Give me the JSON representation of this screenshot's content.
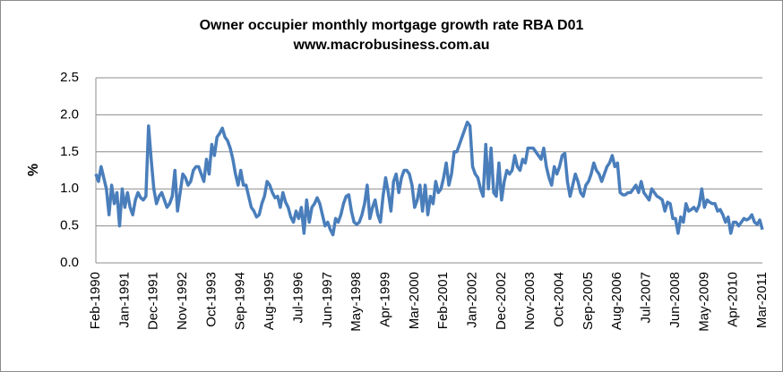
{
  "chart_data": {
    "type": "line",
    "title": "Owner occupier monthly mortgage growth rate RBA D01",
    "subtitle": "www.macrobusiness.com.au",
    "y_label": "%",
    "categories": [
      "Feb-1990",
      null,
      null,
      null,
      null,
      null,
      null,
      null,
      null,
      null,
      null,
      "Jan-1991",
      null,
      null,
      null,
      null,
      null,
      null,
      null,
      null,
      null,
      null,
      "Dec-1991",
      null,
      null,
      null,
      null,
      null,
      null,
      null,
      null,
      null,
      null,
      "Nov-1992",
      null,
      null,
      null,
      null,
      null,
      null,
      null,
      null,
      null,
      null,
      "Oct-1993",
      null,
      null,
      null,
      null,
      null,
      null,
      null,
      null,
      null,
      null,
      "Sep-1994",
      null,
      null,
      null,
      null,
      null,
      null,
      null,
      null,
      null,
      null,
      "Aug-1995",
      null,
      null,
      null,
      null,
      null,
      null,
      null,
      null,
      null,
      null,
      "Jul-1996",
      null,
      null,
      null,
      null,
      null,
      null,
      null,
      null,
      null,
      null,
      "Jun-1997",
      null,
      null,
      null,
      null,
      null,
      null,
      null,
      null,
      null,
      null,
      "May-1998",
      null,
      null,
      null,
      null,
      null,
      null,
      null,
      null,
      null,
      null,
      "Apr-1999",
      null,
      null,
      null,
      null,
      null,
      null,
      null,
      null,
      null,
      null,
      "Mar-2000",
      null,
      null,
      null,
      null,
      null,
      null,
      null,
      null,
      null,
      null,
      "Feb-2001",
      null,
      null,
      null,
      null,
      null,
      null,
      null,
      null,
      null,
      null,
      "Jan-2002",
      null,
      null,
      null,
      null,
      null,
      null,
      null,
      null,
      null,
      null,
      "Dec-2002",
      null,
      null,
      null,
      null,
      null,
      null,
      null,
      null,
      null,
      null,
      "Nov-2003",
      null,
      null,
      null,
      null,
      null,
      null,
      null,
      null,
      null,
      null,
      "Oct-2004",
      null,
      null,
      null,
      null,
      null,
      null,
      null,
      null,
      null,
      null,
      "Sep-2005",
      null,
      null,
      null,
      null,
      null,
      null,
      null,
      null,
      null,
      null,
      "Aug-2006",
      null,
      null,
      null,
      null,
      null,
      null,
      null,
      null,
      null,
      null,
      "Jul-2007",
      null,
      null,
      null,
      null,
      null,
      null,
      null,
      null,
      null,
      null,
      "Jun-2008",
      null,
      null,
      null,
      null,
      null,
      null,
      null,
      null,
      null,
      null,
      "May-2009",
      null,
      null,
      null,
      null,
      null,
      null,
      null,
      null,
      null,
      null,
      "Apr-2010",
      null,
      null,
      null,
      null,
      null,
      null,
      null,
      null,
      null,
      null,
      "Mar-2011"
    ],
    "series": [
      {
        "name": "Owner occupier",
        "color": "#4a7ebb",
        "values": [
          1.2,
          1.1,
          1.3,
          1.15,
          1.0,
          0.65,
          1.05,
          0.8,
          0.95,
          0.5,
          1.0,
          0.75,
          0.95,
          0.75,
          0.65,
          0.85,
          0.95,
          0.88,
          0.85,
          0.9,
          1.85,
          1.4,
          1.0,
          0.8,
          0.9,
          0.95,
          0.85,
          0.75,
          0.8,
          0.9,
          1.25,
          0.7,
          0.95,
          1.2,
          1.15,
          1.05,
          1.1,
          1.25,
          1.3,
          1.3,
          1.2,
          1.1,
          1.4,
          1.2,
          1.6,
          1.45,
          1.7,
          1.75,
          1.82,
          1.7,
          1.65,
          1.55,
          1.4,
          1.2,
          1.05,
          1.25,
          1.05,
          1.05,
          0.9,
          0.75,
          0.7,
          0.62,
          0.65,
          0.8,
          0.9,
          1.1,
          1.05,
          0.95,
          0.88,
          0.9,
          0.75,
          0.95,
          0.82,
          0.75,
          0.62,
          0.55,
          0.7,
          0.6,
          0.75,
          0.4,
          0.85,
          0.55,
          0.75,
          0.8,
          0.88,
          0.8,
          0.65,
          0.5,
          0.55,
          0.45,
          0.38,
          0.6,
          0.55,
          0.65,
          0.8,
          0.9,
          0.92,
          0.7,
          0.55,
          0.52,
          0.55,
          0.65,
          0.8,
          1.05,
          0.6,
          0.75,
          0.85,
          0.65,
          0.55,
          0.9,
          1.15,
          0.95,
          0.7,
          1.1,
          1.2,
          0.95,
          1.15,
          1.25,
          1.25,
          1.2,
          1.05,
          0.75,
          0.85,
          1.05,
          0.7,
          1.05,
          0.65,
          0.9,
          0.8,
          1.1,
          0.95,
          1.0,
          1.15,
          1.35,
          1.05,
          1.2,
          1.5,
          1.5,
          1.6,
          1.7,
          1.8,
          1.9,
          1.85,
          1.3,
          1.2,
          1.15,
          1.0,
          0.9,
          1.6,
          1.0,
          1.55,
          0.95,
          0.9,
          1.35,
          0.85,
          1.1,
          1.25,
          1.2,
          1.25,
          1.45,
          1.3,
          1.25,
          1.4,
          1.35,
          1.55,
          1.55,
          1.55,
          1.5,
          1.45,
          1.4,
          1.55,
          1.3,
          1.15,
          1.05,
          1.3,
          1.2,
          1.3,
          1.45,
          1.48,
          1.1,
          0.9,
          1.05,
          1.2,
          1.1,
          0.95,
          0.9,
          1.05,
          1.1,
          1.2,
          1.35,
          1.25,
          1.2,
          1.1,
          1.2,
          1.3,
          1.35,
          1.45,
          1.3,
          1.35,
          0.95,
          0.92,
          0.92,
          0.95,
          0.95,
          1.0,
          1.05,
          0.95,
          1.1,
          0.95,
          0.9,
          0.85,
          1.0,
          0.95,
          0.9,
          0.88,
          0.85,
          0.7,
          0.82,
          0.8,
          0.6,
          0.6,
          0.4,
          0.62,
          0.55,
          0.8,
          0.7,
          0.72,
          0.75,
          0.7,
          0.78,
          1.0,
          0.75,
          0.85,
          0.82,
          0.8,
          0.8,
          0.7,
          0.72,
          0.65,
          0.55,
          0.62,
          0.4,
          0.55,
          0.55,
          0.5,
          0.55,
          0.6,
          0.58,
          0.6,
          0.65,
          0.55,
          0.52,
          0.58,
          0.45
        ]
      }
    ],
    "ylim": [
      0,
      2.5
    ],
    "yticks": [
      {
        "value": 0,
        "label": "0.0"
      },
      {
        "value": 0.5,
        "label": "0.5"
      },
      {
        "value": 1,
        "label": "1.0"
      },
      {
        "value": 1.5,
        "label": "1.5"
      },
      {
        "value": 2,
        "label": "2.0"
      },
      {
        "value": 2.5,
        "label": "2.5"
      }
    ],
    "grid": true
  }
}
